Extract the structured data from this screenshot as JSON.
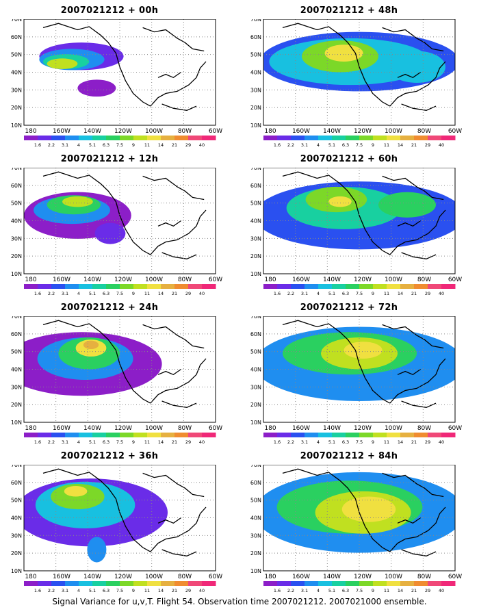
{
  "panels": [
    {
      "title": "2007021212 + 00h"
    },
    {
      "title": "2007021212 + 48h"
    },
    {
      "title": "2007021212 + 12h"
    },
    {
      "title": "2007021212 + 60h"
    },
    {
      "title": "2007021212 + 24h"
    },
    {
      "title": "2007021212 + 72h"
    },
    {
      "title": "2007021212 + 36h"
    },
    {
      "title": "2007021212 + 84h"
    }
  ],
  "lat_labels": [
    "70N",
    "60N",
    "50N",
    "40N",
    "30N",
    "20N",
    "10N"
  ],
  "lon_labels": [
    "180",
    "160W",
    "140W",
    "120W",
    "100W",
    "80W",
    "60W"
  ],
  "colorbar": {
    "labels": [
      "1.6",
      "2.2",
      "3.1",
      "4",
      "5.1",
      "6.3",
      "7.5",
      "9",
      "11",
      "14",
      "21",
      "29",
      "40"
    ],
    "colors": [
      "#8c1ec8",
      "#6a2ce8",
      "#2a50f0",
      "#1f8ef0",
      "#18c0e0",
      "#18d0a0",
      "#2ad060",
      "#7cd828",
      "#c0e020",
      "#f0e040",
      "#e6b040",
      "#f08c30",
      "#f04878",
      "#f02878"
    ]
  },
  "footer": "Signal Variance for u,v,T. Flight 54. Observation time 2007021212. 2007021000 ensemble."
}
